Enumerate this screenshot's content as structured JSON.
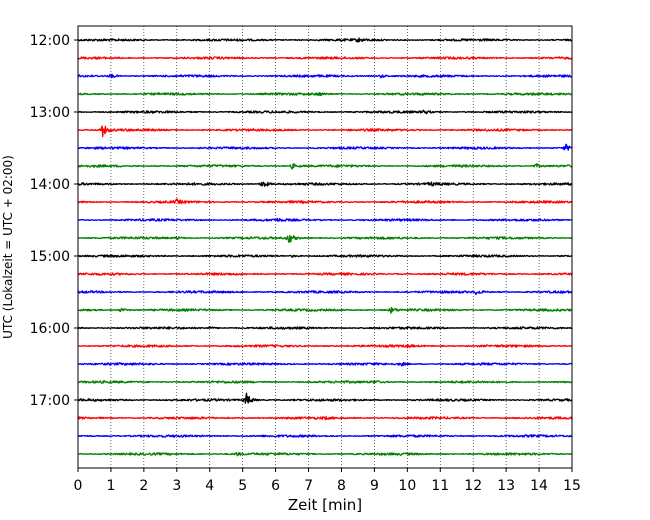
{
  "chart_data": {
    "type": "line",
    "title": "",
    "xlabel": "Zeit  [min]",
    "ylabel": "UTC (Lokalzeit = UTC + 02:00)",
    "xlim": [
      0,
      15
    ],
    "xticks": [
      0,
      1,
      2,
      3,
      4,
      5,
      6,
      7,
      8,
      9,
      10,
      11,
      12,
      13,
      14,
      15
    ],
    "grid": "vertical dotted",
    "ytick_labels": [
      "12:00",
      "13:00",
      "14:00",
      "15:00",
      "16:00",
      "17:00"
    ],
    "trace_interval_min": 15,
    "trace_colors": [
      "#000000",
      "#ff0000",
      "#0000ff",
      "#008000"
    ],
    "traces": [
      {
        "start": "12:00",
        "color": "#000000",
        "events": [
          {
            "x": 8.5,
            "amp": 0.25
          }
        ]
      },
      {
        "start": "12:15",
        "color": "#ff0000",
        "events": []
      },
      {
        "start": "12:30",
        "color": "#0000ff",
        "events": [
          {
            "x": 1.0,
            "amp": 0.3
          },
          {
            "x": 9.2,
            "amp": 0.25
          }
        ]
      },
      {
        "start": "12:45",
        "color": "#008000",
        "events": [
          {
            "x": 7.3,
            "amp": 0.2
          }
        ]
      },
      {
        "start": "13:00",
        "color": "#000000",
        "events": [
          {
            "x": 10.5,
            "amp": 0.3
          }
        ]
      },
      {
        "start": "13:15",
        "color": "#ff0000",
        "events": [
          {
            "x": 0.75,
            "amp": 0.9
          }
        ]
      },
      {
        "start": "13:30",
        "color": "#0000ff",
        "events": [
          {
            "x": 14.8,
            "amp": 0.55
          }
        ]
      },
      {
        "start": "13:45",
        "color": "#008000",
        "events": [
          {
            "x": 6.5,
            "amp": 0.4
          },
          {
            "x": 13.9,
            "amp": 0.3
          }
        ]
      },
      {
        "start": "14:00",
        "color": "#000000",
        "events": [
          {
            "x": 5.6,
            "amp": 0.75
          },
          {
            "x": 10.7,
            "amp": 0.25
          }
        ]
      },
      {
        "start": "14:15",
        "color": "#ff0000",
        "events": [
          {
            "x": 3.0,
            "amp": 0.3
          }
        ]
      },
      {
        "start": "14:30",
        "color": "#0000ff",
        "events": [
          {
            "x": 6.0,
            "amp": 0.15
          }
        ]
      },
      {
        "start": "14:45",
        "color": "#008000",
        "events": [
          {
            "x": 6.4,
            "amp": 0.8
          },
          {
            "x": 3.0,
            "amp": 0.2
          }
        ]
      },
      {
        "start": "15:00",
        "color": "#000000",
        "events": [
          {
            "x": 6.5,
            "amp": 0.15
          }
        ]
      },
      {
        "start": "15:15",
        "color": "#ff0000",
        "events": []
      },
      {
        "start": "15:30",
        "color": "#0000ff",
        "events": [
          {
            "x": 12.1,
            "amp": 0.4
          }
        ]
      },
      {
        "start": "15:45",
        "color": "#008000",
        "events": [
          {
            "x": 1.3,
            "amp": 0.3
          },
          {
            "x": 9.5,
            "amp": 0.4
          }
        ]
      },
      {
        "start": "16:00",
        "color": "#000000",
        "events": [
          {
            "x": 4.0,
            "amp": 0.15
          }
        ]
      },
      {
        "start": "16:15",
        "color": "#ff0000",
        "events": [
          {
            "x": 10.0,
            "amp": 0.2
          }
        ]
      },
      {
        "start": "16:30",
        "color": "#0000ff",
        "events": [
          {
            "x": 9.8,
            "amp": 0.25
          }
        ]
      },
      {
        "start": "16:45",
        "color": "#008000",
        "events": [
          {
            "x": 9.0,
            "amp": 0.2
          }
        ]
      },
      {
        "start": "17:00",
        "color": "#000000",
        "events": [
          {
            "x": 5.1,
            "amp": 1.1
          }
        ]
      },
      {
        "start": "17:15",
        "color": "#ff0000",
        "events": [
          {
            "x": 7.5,
            "amp": 0.15
          }
        ]
      },
      {
        "start": "17:30",
        "color": "#0000ff",
        "events": []
      },
      {
        "start": "17:45",
        "color": "#008000",
        "events": [
          {
            "x": 4.8,
            "amp": 0.25
          }
        ]
      }
    ]
  }
}
